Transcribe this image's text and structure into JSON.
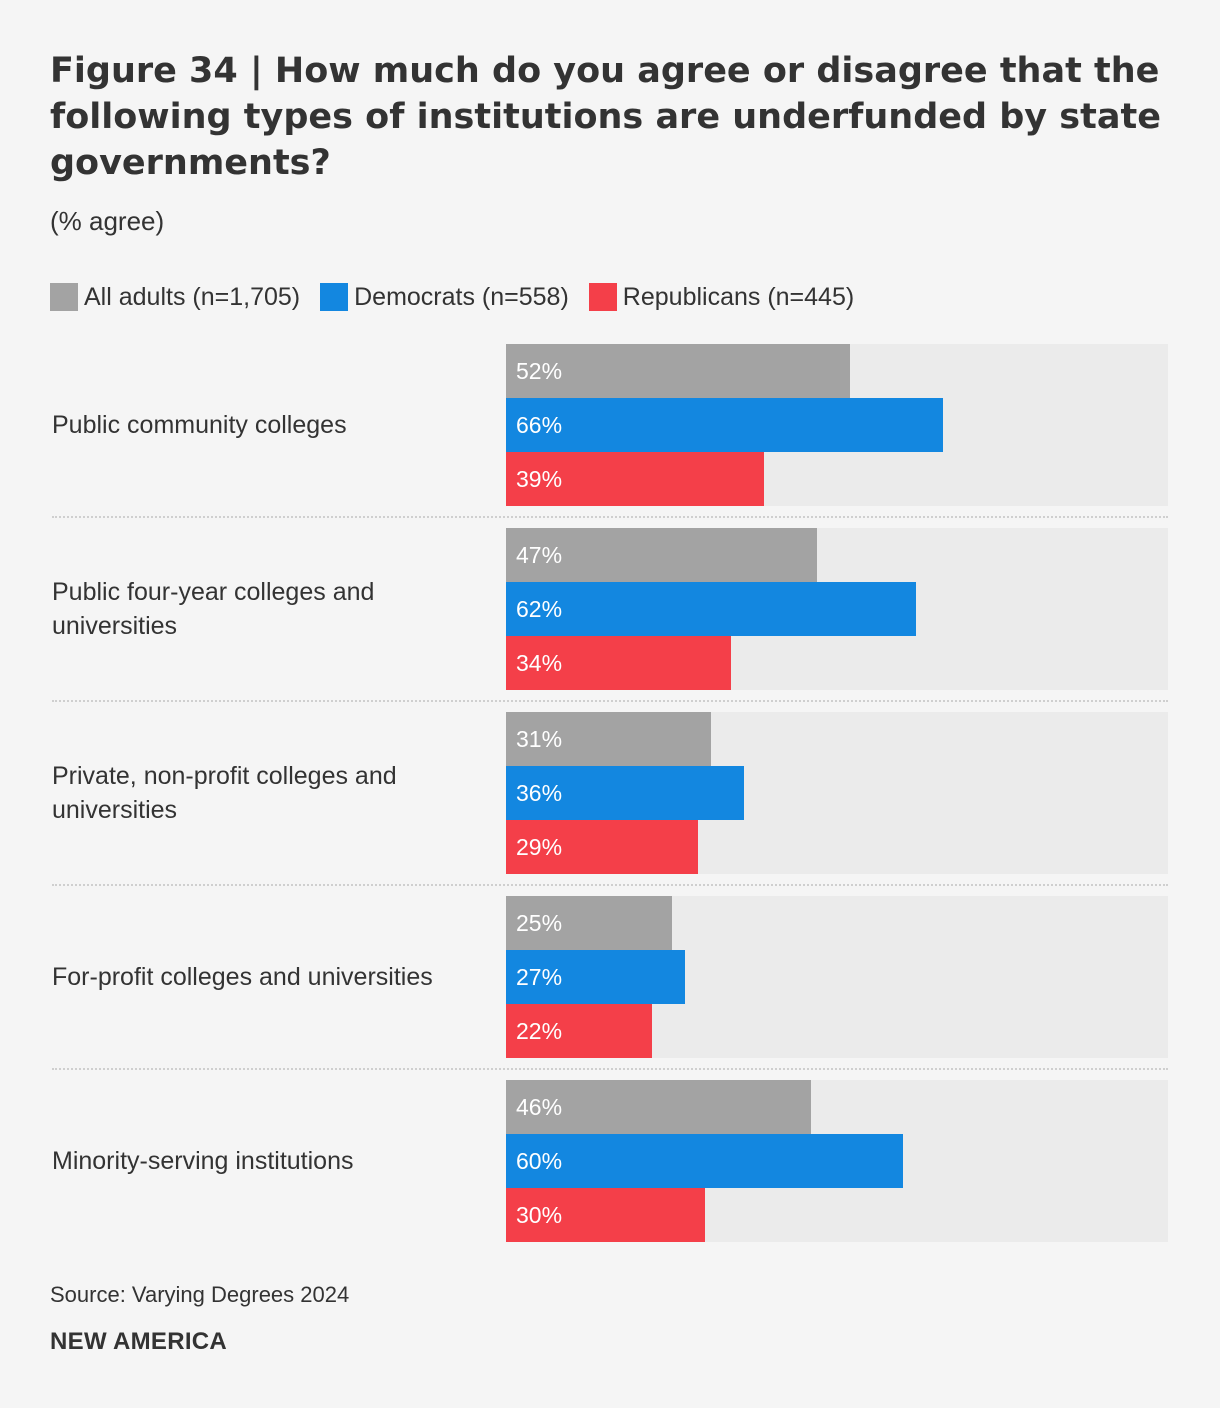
{
  "chart_data": {
    "type": "bar",
    "orientation": "horizontal",
    "title": "Figure 34 | How much do you agree or disagree that the following types of institutions are underfunded by state governments?",
    "subtitle": "(% agree)",
    "xlim": [
      0,
      100
    ],
    "value_suffix": "%",
    "categories": [
      [
        "Public community colleges"
      ],
      [
        "Public four-year colleges and",
        "universities"
      ],
      [
        "Private, non-profit colleges and",
        "universities"
      ],
      [
        "For-profit colleges and universities"
      ],
      [
        "Minority-serving institutions"
      ]
    ],
    "series": [
      {
        "name": "All adults (n=1,705)",
        "color": "#a3a3a3",
        "values": [
          52,
          47,
          31,
          25,
          46
        ]
      },
      {
        "name": "Democrats (n=558)",
        "color": "#1387e0",
        "values": [
          66,
          62,
          36,
          27,
          60
        ]
      },
      {
        "name": "Republicans (n=445)",
        "color": "#f43f49",
        "values": [
          39,
          34,
          29,
          22,
          30
        ]
      }
    ],
    "legend_position": "top-left",
    "track_color": "#ebebeb"
  },
  "source": "Source: Varying Degrees 2024",
  "brand": "NEW AMERICA"
}
